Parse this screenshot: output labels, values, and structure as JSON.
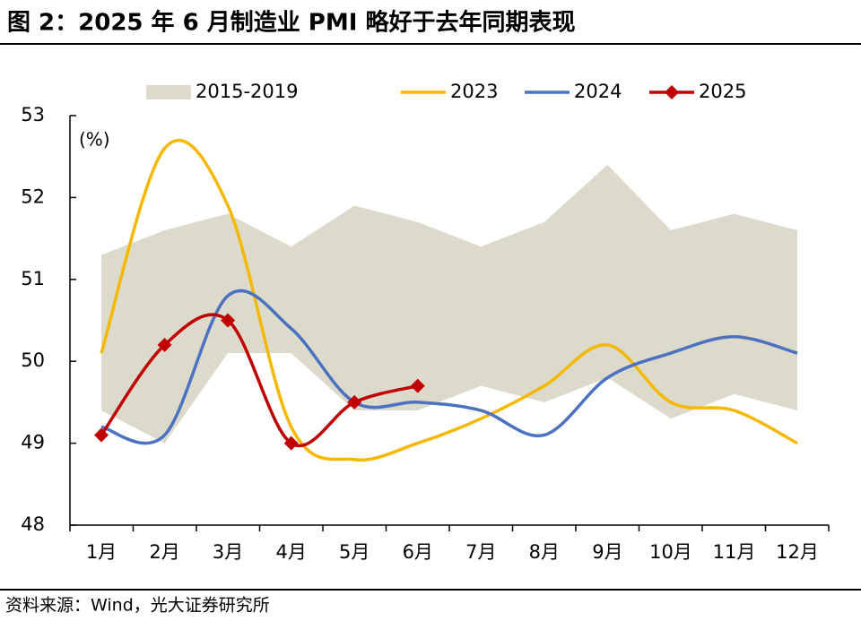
{
  "chart_data": {
    "type": "line",
    "title": "图 2：2025 年 6 月制造业 PMI 略好于去年同期表现",
    "y_label": "(%)",
    "source": "资料来源：Wind，光大证券研究所",
    "categories": [
      "1月",
      "2月",
      "3月",
      "4月",
      "5月",
      "6月",
      "7月",
      "8月",
      "9月",
      "10月",
      "11月",
      "12月"
    ],
    "series": [
      {
        "name": "2015-2019",
        "type": "band",
        "color": "#dcdacb",
        "low": [
          49.4,
          49.0,
          50.1,
          50.1,
          49.4,
          49.4,
          49.7,
          49.5,
          49.8,
          49.3,
          49.6,
          49.4
        ],
        "high": [
          51.3,
          51.6,
          51.8,
          51.4,
          51.9,
          51.7,
          51.4,
          51.7,
          52.4,
          51.6,
          51.8,
          51.6
        ]
      },
      {
        "name": "2023",
        "color": "#f5b800",
        "values": [
          50.1,
          52.6,
          51.9,
          49.2,
          48.8,
          49.0,
          49.3,
          49.7,
          50.2,
          49.5,
          49.4,
          49.0
        ]
      },
      {
        "name": "2024",
        "color": "#4a72c0",
        "values": [
          49.2,
          49.1,
          50.8,
          50.4,
          49.5,
          49.5,
          49.4,
          49.1,
          49.8,
          50.1,
          50.3,
          50.1
        ]
      },
      {
        "name": "2025",
        "color": "#c00000",
        "marker": "diamond",
        "values": [
          49.1,
          50.2,
          50.5,
          49.0,
          49.5,
          49.7,
          null,
          null,
          null,
          null,
          null,
          null
        ]
      }
    ],
    "ylim": [
      48,
      53
    ],
    "yticks": [
      48,
      49,
      50,
      51,
      52,
      53
    ],
    "smooth": true
  }
}
